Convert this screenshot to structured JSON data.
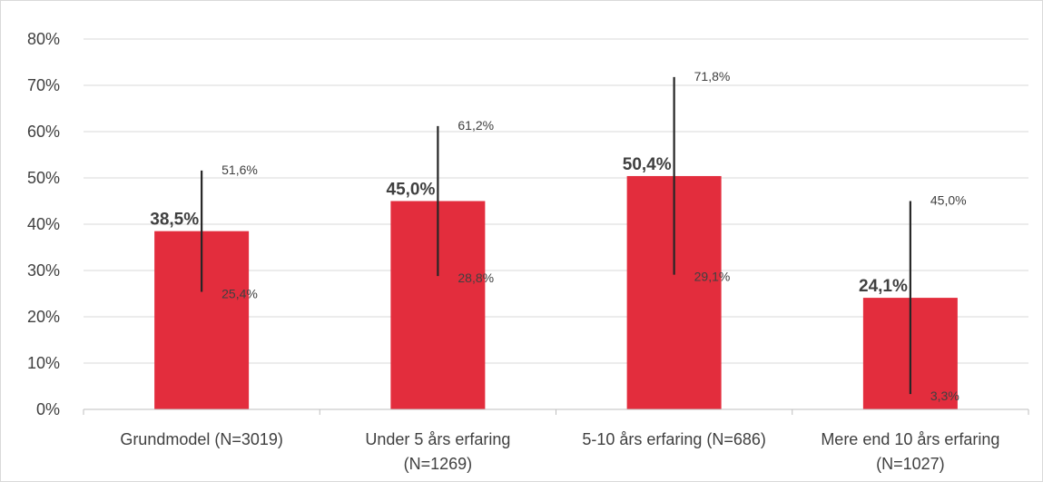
{
  "chart_data": {
    "type": "bar",
    "categories": [
      [
        "Grundmodel (N=3019)"
      ],
      [
        "Under 5 års erfaring",
        "(N=1269)"
      ],
      [
        "5-10 års erfaring (N=686)"
      ],
      [
        "Mere end 10 års erfaring",
        "(N=1027)"
      ]
    ],
    "values": [
      38.5,
      45.0,
      50.4,
      24.1
    ],
    "value_labels": [
      "38,5%",
      "45,0%",
      "50,4%",
      "24,1%"
    ],
    "error_upper": [
      51.6,
      61.2,
      71.8,
      45.0
    ],
    "error_upper_labels": [
      "51,6%",
      "61,2%",
      "71,8%",
      "45,0%"
    ],
    "error_lower": [
      25.4,
      28.8,
      29.1,
      3.3
    ],
    "error_lower_labels": [
      "25,4%",
      "28,8%",
      "29,1%",
      "3,3%"
    ],
    "ylim": [
      0,
      80
    ],
    "yticks": [
      "0%",
      "10%",
      "20%",
      "30%",
      "40%",
      "50%",
      "60%",
      "70%",
      "80%"
    ],
    "grid": true,
    "bar_color": "#e32d3d",
    "error_bar_color": "#262626"
  }
}
